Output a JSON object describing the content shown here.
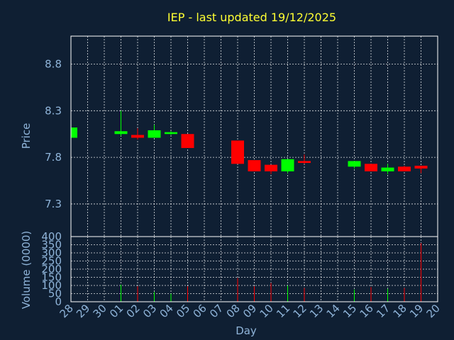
{
  "chart_data": {
    "type": "candlestick",
    "title": "IEP - last updated 19/12/2025",
    "xlabel": "Day",
    "price_ylabel": "Price",
    "volume_ylabel": "Volume (0000)",
    "x_ticks": [
      "28",
      "29",
      "30",
      "01",
      "02",
      "03",
      "04",
      "05",
      "06",
      "07",
      "08",
      "09",
      "10",
      "11",
      "12",
      "13",
      "14",
      "15",
      "16",
      "17",
      "18",
      "19",
      "20"
    ],
    "price_yticks": [
      7.3,
      7.8,
      8.3,
      8.8
    ],
    "price_ylim": [
      6.95,
      9.1
    ],
    "volume_yticks": [
      0,
      50,
      100,
      150,
      200,
      250,
      300,
      350,
      400
    ],
    "volume_ylim": [
      0,
      400
    ],
    "grid": true,
    "colors": {
      "up": "#00ff00",
      "down": "#ff0000",
      "background": "#0f1f33",
      "title": "#ffff33",
      "label": "#8fb4d9"
    },
    "candles": [
      {
        "day": "28",
        "open": 8.01,
        "close": 8.12,
        "high": 8.12,
        "low": 8.01,
        "volume": 0
      },
      {
        "day": "01",
        "open": 8.05,
        "close": 8.08,
        "high": 8.3,
        "low": 8.03,
        "volume": 105
      },
      {
        "day": "02",
        "open": 8.04,
        "close": 8.01,
        "high": 8.11,
        "low": 7.99,
        "volume": 95
      },
      {
        "day": "03",
        "open": 8.01,
        "close": 8.09,
        "high": 8.15,
        "low": 8.01,
        "volume": 60
      },
      {
        "day": "04",
        "open": 8.05,
        "close": 8.07,
        "high": 8.08,
        "low": 8.04,
        "volume": 50
      },
      {
        "day": "05",
        "open": 8.05,
        "close": 7.9,
        "high": 8.05,
        "low": 7.9,
        "volume": 95
      },
      {
        "day": "08",
        "open": 7.98,
        "close": 7.73,
        "high": 7.98,
        "low": 7.73,
        "volume": 145
      },
      {
        "day": "09",
        "open": 7.77,
        "close": 7.65,
        "high": 7.77,
        "low": 7.65,
        "volume": 95
      },
      {
        "day": "10",
        "open": 7.72,
        "close": 7.65,
        "high": 7.72,
        "low": 7.62,
        "volume": 115
      },
      {
        "day": "11",
        "open": 7.65,
        "close": 7.78,
        "high": 7.78,
        "low": 7.63,
        "volume": 100
      },
      {
        "day": "12",
        "open": 7.76,
        "close": 7.74,
        "high": 7.83,
        "low": 7.73,
        "volume": 85
      },
      {
        "day": "15",
        "open": 7.7,
        "close": 7.76,
        "high": 7.76,
        "low": 7.68,
        "volume": 75
      },
      {
        "day": "16",
        "open": 7.73,
        "close": 7.65,
        "high": 7.73,
        "low": 7.65,
        "volume": 90
      },
      {
        "day": "17",
        "open": 7.65,
        "close": 7.69,
        "high": 7.73,
        "low": 7.62,
        "volume": 80
      },
      {
        "day": "18",
        "open": 7.7,
        "close": 7.65,
        "high": 7.71,
        "low": 7.65,
        "volume": 85
      },
      {
        "day": "19",
        "open": 7.71,
        "close": 7.68,
        "high": 7.71,
        "low": 7.63,
        "volume": 360
      }
    ]
  }
}
